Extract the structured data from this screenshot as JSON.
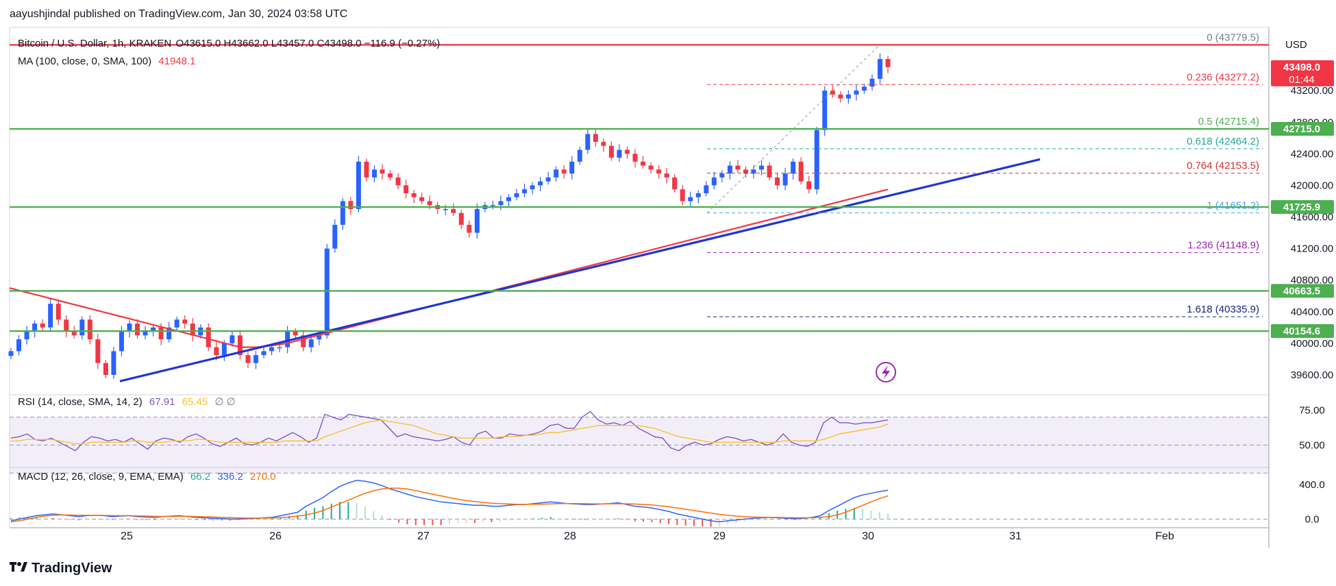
{
  "header": {
    "publisher": "aayushjindal published on TradingView.com, Jan 30, 2024 03:58 UTC",
    "currency": "USD"
  },
  "legend": {
    "symbol": "Bitcoin / U.S. Dollar, 1h, KRAKEN",
    "ohlc": "O43615.0 H43662.0 L43457.0 C43498.0 −116.9 (−0.27%)",
    "ma_label": "MA (100, close, 0, SMA, 100)",
    "ma_value": "41948.1",
    "rsi_label": "RSI (14, close, SMA, 14, 2)",
    "rsi_value": "67.91",
    "rsi_sma": "65.45",
    "rsi_extra": "∅  ∅",
    "macd_label": "MACD (12, 26, close, 9, EMA, EMA)",
    "macd_hist": "66.2",
    "macd_line": "336.2",
    "macd_signal": "270.0"
  },
  "brand": {
    "name": "TradingView"
  },
  "colors": {
    "up": "#2962ff",
    "down": "#f23645",
    "support": "#4caf50",
    "trendline": "#1f35d1",
    "ma": "#f23645",
    "rsi": "#7e57c2",
    "rsi_sma": "#fbc02d",
    "macd": "#2962ff",
    "signal": "#ff6d00"
  },
  "chart_data": [
    {
      "type": "candlestick",
      "title": "Bitcoin / U.S. Dollar, 1h, KRAKEN",
      "x_ticks": [
        "25",
        "26",
        "27",
        "28",
        "29",
        "30",
        "31",
        "Feb"
      ],
      "y_ticks": [
        39600,
        40000,
        40400,
        40800,
        41200,
        41600,
        42000,
        42400,
        42800,
        43200
      ],
      "ylim": [
        39400,
        44000
      ],
      "price_labels": [
        {
          "value": 43498.0,
          "text": "43498.0",
          "sub": "01:44",
          "color": "#f23645"
        },
        {
          "value": 42715.0,
          "text": "42715.0",
          "color": "#4caf50"
        },
        {
          "value": 41725.9,
          "text": "41725.9",
          "color": "#4caf50"
        },
        {
          "value": 40663.5,
          "text": "40663.5",
          "color": "#4caf50"
        },
        {
          "value": 40154.6,
          "text": "40154.6",
          "color": "#4caf50"
        }
      ],
      "support_lines": [
        42715.0,
        41725.9,
        40663.5,
        40154.6
      ],
      "resistance_line": 43779.5,
      "fib_levels": [
        {
          "ratio": "0",
          "value": "43779.5",
          "color": "#787b86"
        },
        {
          "ratio": "0.236",
          "value": "43277.2",
          "color": "#f23645"
        },
        {
          "ratio": "0.5",
          "value": "42715.4",
          "color": "#4caf50"
        },
        {
          "ratio": "0.618",
          "value": "42464.2",
          "color": "#26a69a"
        },
        {
          "ratio": "0.764",
          "value": "42153.5",
          "color": "#d32f2f"
        },
        {
          "ratio": "1",
          "value": "41651.2",
          "color": "#4da6d9"
        },
        {
          "ratio": "1.236",
          "value": "41148.9",
          "color": "#9c27b0"
        },
        {
          "ratio": "1.618",
          "value": "40335.9",
          "color": "#1a237e"
        }
      ],
      "closes": [
        39900,
        40050,
        40150,
        40250,
        40200,
        40500,
        40300,
        40150,
        40100,
        40300,
        40050,
        39750,
        39600,
        39900,
        40150,
        40250,
        40100,
        40150,
        40200,
        40050,
        40200,
        40300,
        40250,
        40100,
        40200,
        39950,
        39850,
        40000,
        40100,
        39850,
        39750,
        39850,
        39900,
        39950,
        39950,
        40150,
        40100,
        39950,
        40050,
        40100,
        41200,
        41500,
        41800,
        41700,
        42300,
        42100,
        42200,
        42150,
        42100,
        42000,
        41900,
        41850,
        41800,
        41750,
        41700,
        41700,
        41650,
        41500,
        41400,
        41700,
        41750,
        41750,
        41800,
        41850,
        41900,
        41950,
        42000,
        42050,
        42100,
        42200,
        42150,
        42300,
        42450,
        42650,
        42550,
        42500,
        42350,
        42450,
        42400,
        42300,
        42250,
        42200,
        42150,
        42100,
        41950,
        41800,
        41850,
        41900,
        42000,
        42100,
        42150,
        42250,
        42200,
        42150,
        42200,
        42250,
        42100,
        42000,
        42150,
        42300,
        42050,
        41950,
        42700,
        43200,
        43150,
        43100,
        43150,
        43200,
        43250,
        43350,
        43600,
        43498
      ]
    },
    {
      "type": "line",
      "title": "RSI (14, close, SMA, 14, 2)",
      "y_ticks": [
        50.0,
        75.0
      ],
      "ylim": [
        35,
        85
      ],
      "band": [
        30,
        70
      ],
      "series": [
        {
          "name": "RSI",
          "values": [
            55,
            56,
            58,
            54,
            53,
            55,
            52,
            49,
            46,
            52,
            56,
            55,
            53,
            54,
            52,
            55,
            51,
            47,
            53,
            55,
            54,
            52,
            56,
            58,
            55,
            51,
            49,
            52,
            55,
            51,
            50,
            52,
            55,
            53,
            56,
            59,
            56,
            52,
            55,
            72,
            70,
            68,
            72,
            71,
            70,
            69,
            68,
            62,
            56,
            58,
            56,
            55,
            54,
            53,
            54,
            56,
            52,
            50,
            58,
            60,
            55,
            55,
            58,
            57,
            57,
            58,
            60,
            64,
            65,
            62,
            62,
            70,
            74,
            68,
            65,
            66,
            64,
            67,
            62,
            59,
            56,
            55,
            48,
            46,
            50,
            52,
            50,
            51,
            54,
            56,
            55,
            53,
            54,
            52,
            50,
            52,
            58,
            52,
            50,
            49,
            52,
            66,
            70,
            66,
            66,
            65,
            66,
            66,
            67,
            68
          ]
        },
        {
          "name": "SMA",
          "values": [
            53,
            53,
            54,
            54,
            54,
            54,
            53,
            52,
            51,
            51,
            52,
            52,
            52,
            52,
            52,
            53,
            53,
            52,
            52,
            52,
            53,
            53,
            53,
            54,
            54,
            53,
            52,
            52,
            52,
            52,
            52,
            52,
            52,
            52,
            53,
            53,
            53,
            53,
            53,
            56,
            58,
            60,
            62,
            64,
            66,
            67,
            68,
            67,
            66,
            65,
            64,
            62,
            60,
            58,
            57,
            56,
            55,
            55,
            55,
            55,
            55,
            56,
            56,
            56,
            57,
            57,
            58,
            59,
            59,
            60,
            61,
            62,
            63,
            64,
            64,
            64,
            64,
            64,
            64,
            63,
            62,
            60,
            58,
            56,
            55,
            54,
            53,
            52,
            52,
            52,
            52,
            52,
            52,
            52,
            52,
            52,
            53,
            53,
            53,
            53,
            53,
            54,
            56,
            58,
            59,
            60,
            61,
            62,
            63,
            65
          ]
        }
      ]
    },
    {
      "type": "line",
      "title": "MACD (12, 26, close, 9, EMA, EMA)",
      "y_ticks": [
        0.0,
        400.0
      ],
      "ylim": [
        -100,
        600
      ],
      "series": [
        {
          "name": "MACD",
          "values": [
            -20,
            0,
            20,
            40,
            50,
            60,
            50,
            40,
            30,
            40,
            45,
            40,
            30,
            35,
            40,
            30,
            25,
            20,
            30,
            35,
            40,
            30,
            20,
            15,
            10,
            5,
            0,
            0,
            5,
            10,
            15,
            20,
            40,
            60,
            80,
            150,
            200,
            250,
            320,
            380,
            420,
            450,
            440,
            420,
            390,
            350,
            320,
            290,
            260,
            240,
            220,
            200,
            190,
            180,
            170,
            160,
            160,
            150,
            150,
            160,
            170,
            170,
            180,
            190,
            200,
            190,
            180,
            175,
            170,
            170,
            175,
            180,
            190,
            170,
            150,
            140,
            130,
            110,
            90,
            60,
            40,
            20,
            0,
            -20,
            -30,
            -20,
            -10,
            0,
            10,
            15,
            20,
            15,
            10,
            5,
            10,
            20,
            40,
            100,
            150,
            200,
            250,
            280,
            300,
            320,
            336
          ]
        },
        {
          "name": "Signal",
          "values": [
            -30,
            -20,
            0,
            20,
            35,
            45,
            48,
            47,
            45,
            44,
            44,
            43,
            41,
            40,
            40,
            38,
            35,
            32,
            31,
            32,
            33,
            33,
            30,
            27,
            24,
            20,
            17,
            14,
            12,
            12,
            12,
            14,
            18,
            25,
            35,
            50,
            70,
            100,
            140,
            180,
            220,
            260,
            300,
            330,
            350,
            360,
            360,
            350,
            330,
            310,
            290,
            270,
            250,
            230,
            215,
            205,
            195,
            185,
            180,
            175,
            172,
            171,
            172,
            174,
            177,
            180,
            181,
            180,
            179,
            178,
            177,
            178,
            179,
            178,
            175,
            170,
            164,
            155,
            145,
            130,
            115,
            100,
            85,
            70,
            55,
            45,
            35,
            28,
            24,
            22,
            20,
            20,
            18,
            16,
            15,
            16,
            20,
            30,
            50,
            80,
            120,
            160,
            200,
            240,
            270
          ]
        }
      ],
      "histogram_note": "66.2"
    }
  ]
}
